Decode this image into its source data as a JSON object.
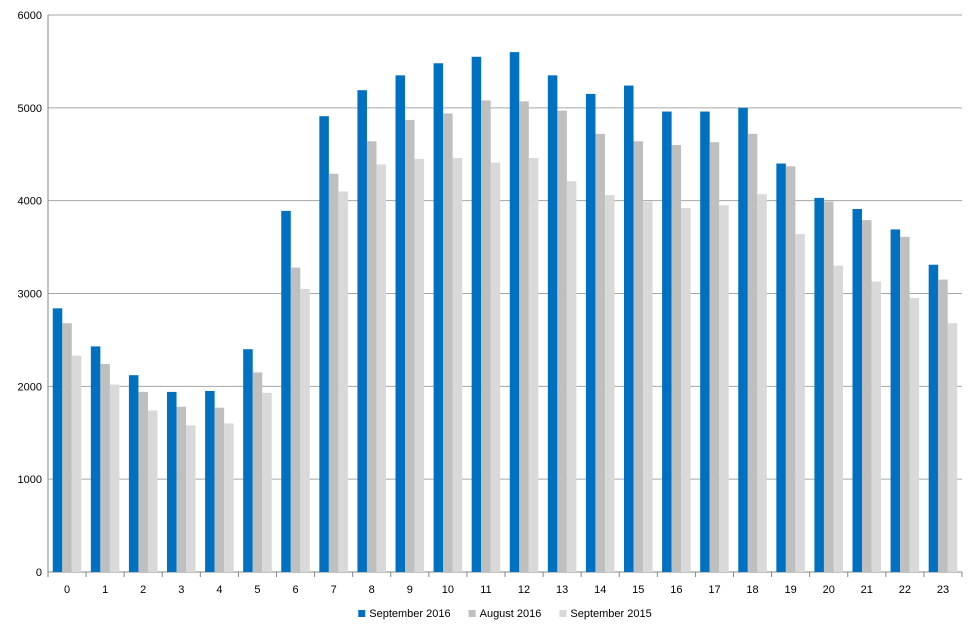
{
  "chart_data": {
    "type": "bar",
    "title": "",
    "xlabel": "",
    "ylabel": "",
    "ylim": [
      0,
      6000
    ],
    "yticks": [
      0,
      1000,
      2000,
      3000,
      4000,
      5000,
      6000
    ],
    "grid": "horizontal",
    "legend_position": "bottom",
    "categories": [
      "0",
      "1",
      "2",
      "3",
      "4",
      "5",
      "6",
      "7",
      "8",
      "9",
      "10",
      "11",
      "12",
      "13",
      "14",
      "15",
      "16",
      "17",
      "18",
      "19",
      "20",
      "21",
      "22",
      "23"
    ],
    "series": [
      {
        "name": "September 2016",
        "color": "#0070C0",
        "values": [
          2840,
          2430,
          2120,
          1940,
          1950,
          2400,
          3890,
          4910,
          5190,
          5350,
          5480,
          5550,
          5600,
          5350,
          5150,
          5240,
          4960,
          4960,
          5000,
          4400,
          4030,
          3910,
          3690,
          3310
        ]
      },
      {
        "name": "August 2016",
        "color": "#BFBFBF",
        "values": [
          2680,
          2240,
          1940,
          1780,
          1770,
          2150,
          3280,
          4290,
          4640,
          4870,
          4940,
          5080,
          5070,
          4970,
          4720,
          4640,
          4600,
          4630,
          4720,
          4370,
          3990,
          3790,
          3610,
          3150
        ]
      },
      {
        "name": "September 2015",
        "color": "#D9D9D9",
        "values": [
          2330,
          2020,
          1740,
          1580,
          1600,
          1930,
          3050,
          4100,
          4390,
          4450,
          4460,
          4410,
          4460,
          4210,
          4060,
          3990,
          3920,
          3950,
          4070,
          3640,
          3300,
          3130,
          2950,
          2680
        ]
      }
    ]
  }
}
